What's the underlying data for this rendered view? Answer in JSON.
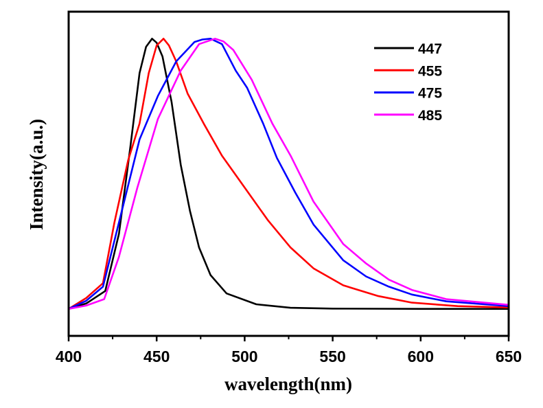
{
  "chart_data": {
    "type": "line",
    "title": "",
    "xlabel": "wavelength(nm)",
    "ylabel": "Intensity(a.u.)",
    "xlim": [
      400,
      650
    ],
    "ylim": [
      -0.1,
      1.1
    ],
    "xticks": [
      400,
      450,
      500,
      550,
      600,
      650
    ],
    "xtick_labels": [
      "400",
      "450",
      "500",
      "550",
      "600",
      "650"
    ],
    "yticks_shown": false,
    "grid": false,
    "legend_position": "top-right",
    "series": [
      {
        "name": "447",
        "color": "#000000",
        "points": [
          [
            400,
            0
          ],
          [
            410,
            0.02
          ],
          [
            420.8,
            0.066
          ],
          [
            428.6,
            0.278
          ],
          [
            435.1,
            0.602
          ],
          [
            440.3,
            0.873
          ],
          [
            444,
            0.97
          ],
          [
            447.4,
            1.0
          ],
          [
            450,
            0.985
          ],
          [
            453.3,
            0.934
          ],
          [
            458.5,
            0.765
          ],
          [
            463.7,
            0.533
          ],
          [
            468.9,
            0.363
          ],
          [
            474.1,
            0.227
          ],
          [
            480.6,
            0.125
          ],
          [
            489.7,
            0.057
          ],
          [
            506.6,
            0.017
          ],
          [
            526,
            0.004
          ],
          [
            550,
            0.001
          ],
          [
            600,
            0
          ],
          [
            650,
            0
          ]
        ]
      },
      {
        "name": "455",
        "color": "#ff0000",
        "points": [
          [
            400,
            0
          ],
          [
            410,
            0.04
          ],
          [
            419.5,
            0.095
          ],
          [
            426,
            0.32
          ],
          [
            433.8,
            0.55
          ],
          [
            440.3,
            0.686
          ],
          [
            445.5,
            0.873
          ],
          [
            450,
            0.975
          ],
          [
            453.9,
            1.0
          ],
          [
            457,
            0.975
          ],
          [
            461.1,
            0.916
          ],
          [
            467.6,
            0.797
          ],
          [
            476.7,
            0.686
          ],
          [
            487.1,
            0.567
          ],
          [
            500.1,
            0.448
          ],
          [
            513.1,
            0.329
          ],
          [
            526.1,
            0.227
          ],
          [
            539.1,
            0.15
          ],
          [
            556,
            0.087
          ],
          [
            575.5,
            0.048
          ],
          [
            595,
            0.023
          ],
          [
            621,
            0.01
          ],
          [
            650,
            0.005
          ]
        ]
      },
      {
        "name": "475",
        "color": "#0000ff",
        "points": [
          [
            400,
            0
          ],
          [
            410,
            0.03
          ],
          [
            419.5,
            0.082
          ],
          [
            428.6,
            0.32
          ],
          [
            440.3,
            0.627
          ],
          [
            450.7,
            0.788
          ],
          [
            461.1,
            0.916
          ],
          [
            471.5,
            0.988
          ],
          [
            476,
            0.997
          ],
          [
            480.6,
            1.0
          ],
          [
            487.1,
            0.98
          ],
          [
            494.9,
            0.882
          ],
          [
            501.4,
            0.818
          ],
          [
            510.5,
            0.686
          ],
          [
            518.3,
            0.559
          ],
          [
            528.7,
            0.431
          ],
          [
            539.1,
            0.312
          ],
          [
            556,
            0.18
          ],
          [
            569,
            0.12
          ],
          [
            582,
            0.082
          ],
          [
            595,
            0.053
          ],
          [
            614.5,
            0.028
          ],
          [
            650,
            0.01
          ]
        ]
      },
      {
        "name": "485",
        "color": "#ff00ff",
        "points": [
          [
            400,
            0
          ],
          [
            410,
            0.012
          ],
          [
            420.2,
            0.036
          ],
          [
            428.6,
            0.193
          ],
          [
            439,
            0.448
          ],
          [
            450.7,
            0.703
          ],
          [
            463.7,
            0.882
          ],
          [
            474.1,
            0.98
          ],
          [
            483.2,
            1.0
          ],
          [
            488,
            0.99
          ],
          [
            493.6,
            0.958
          ],
          [
            504,
            0.848
          ],
          [
            515.7,
            0.686
          ],
          [
            526.1,
            0.567
          ],
          [
            539.1,
            0.397
          ],
          [
            556,
            0.24
          ],
          [
            569,
            0.168
          ],
          [
            582,
            0.108
          ],
          [
            595,
            0.07
          ],
          [
            614.5,
            0.036
          ],
          [
            650,
            0.015
          ]
        ]
      }
    ]
  }
}
